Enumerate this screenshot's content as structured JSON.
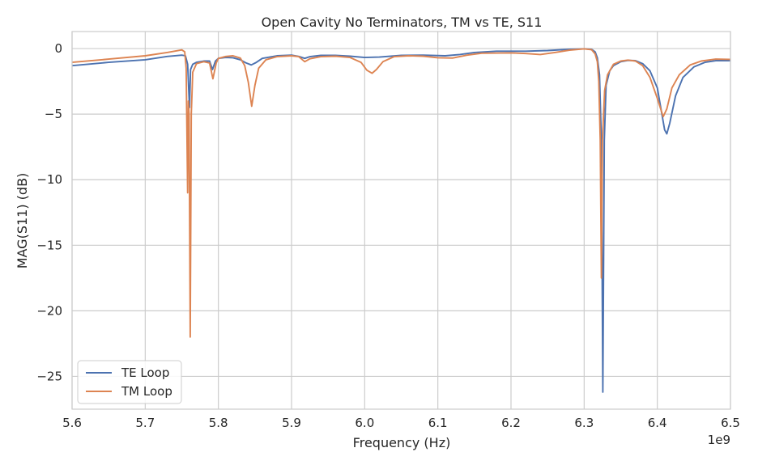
{
  "chart_data": {
    "type": "line",
    "title": "Open Cavity No Terminators, TM vs TE, S11",
    "xlabel": "Frequency (Hz)",
    "ylabel": "MAG(S11) (dB)",
    "x_offset_label": "1e9",
    "xlim": [
      5.6,
      6.5
    ],
    "ylim": [
      -27.5,
      1.3
    ],
    "grid": true,
    "legend_position": "lower-left",
    "x_ticks": [
      5.6,
      5.7,
      5.8,
      5.9,
      6.0,
      6.1,
      6.2,
      6.3,
      6.4,
      6.5
    ],
    "x_tick_labels": [
      "5.6",
      "5.7",
      "5.8",
      "5.9",
      "6.0",
      "6.1",
      "6.2",
      "6.3",
      "6.4",
      "6.5"
    ],
    "y_ticks": [
      0,
      -5,
      -10,
      -15,
      -20,
      -25
    ],
    "y_tick_labels": [
      "0",
      "−5",
      "−10",
      "−15",
      "−20",
      "−25"
    ],
    "series": [
      {
        "name": "TE Loop",
        "color": "#4c72b0",
        "points": [
          [
            5.6,
            -1.3
          ],
          [
            5.65,
            -1.05
          ],
          [
            5.7,
            -0.85
          ],
          [
            5.73,
            -0.6
          ],
          [
            5.75,
            -0.5
          ],
          [
            5.755,
            -0.55
          ],
          [
            5.758,
            -1.2
          ],
          [
            5.7605,
            -4.5
          ],
          [
            5.762,
            -1.6
          ],
          [
            5.765,
            -1.2
          ],
          [
            5.77,
            -1.05
          ],
          [
            5.78,
            -0.95
          ],
          [
            5.788,
            -0.95
          ],
          [
            5.792,
            -1.6
          ],
          [
            5.796,
            -0.95
          ],
          [
            5.8,
            -0.75
          ],
          [
            5.81,
            -0.68
          ],
          [
            5.82,
            -0.7
          ],
          [
            5.83,
            -0.85
          ],
          [
            5.838,
            -1.1
          ],
          [
            5.845,
            -1.25
          ],
          [
            5.852,
            -1.05
          ],
          [
            5.86,
            -0.75
          ],
          [
            5.88,
            -0.55
          ],
          [
            5.9,
            -0.5
          ],
          [
            5.91,
            -0.6
          ],
          [
            5.918,
            -0.75
          ],
          [
            5.925,
            -0.62
          ],
          [
            5.94,
            -0.52
          ],
          [
            5.96,
            -0.52
          ],
          [
            5.98,
            -0.58
          ],
          [
            6.0,
            -0.68
          ],
          [
            6.02,
            -0.65
          ],
          [
            6.05,
            -0.52
          ],
          [
            6.08,
            -0.5
          ],
          [
            6.11,
            -0.55
          ],
          [
            6.13,
            -0.45
          ],
          [
            6.15,
            -0.3
          ],
          [
            6.18,
            -0.2
          ],
          [
            6.22,
            -0.2
          ],
          [
            6.25,
            -0.15
          ],
          [
            6.28,
            -0.05
          ],
          [
            6.3,
            -0.02
          ],
          [
            6.31,
            -0.05
          ],
          [
            6.315,
            -0.25
          ],
          [
            6.318,
            -0.7
          ],
          [
            6.321,
            -2.0
          ],
          [
            6.3235,
            -7.0
          ],
          [
            6.3255,
            -26.2
          ],
          [
            6.3275,
            -7.0
          ],
          [
            6.33,
            -2.8
          ],
          [
            6.335,
            -1.7
          ],
          [
            6.34,
            -1.3
          ],
          [
            6.35,
            -1.0
          ],
          [
            6.36,
            -0.9
          ],
          [
            6.37,
            -0.92
          ],
          [
            6.38,
            -1.15
          ],
          [
            6.39,
            -1.7
          ],
          [
            6.4,
            -3.0
          ],
          [
            6.405,
            -4.6
          ],
          [
            6.41,
            -6.2
          ],
          [
            6.413,
            -6.5
          ],
          [
            6.417,
            -5.7
          ],
          [
            6.425,
            -3.6
          ],
          [
            6.435,
            -2.2
          ],
          [
            6.45,
            -1.4
          ],
          [
            6.465,
            -1.05
          ],
          [
            6.48,
            -0.92
          ],
          [
            6.5,
            -0.92
          ]
        ]
      },
      {
        "name": "TM Loop",
        "color": "#dd8452",
        "points": [
          [
            5.6,
            -1.05
          ],
          [
            5.65,
            -0.8
          ],
          [
            5.7,
            -0.55
          ],
          [
            5.73,
            -0.3
          ],
          [
            5.75,
            -0.1
          ],
          [
            5.754,
            -0.25
          ],
          [
            5.756,
            -1.5
          ],
          [
            5.758,
            -11.0
          ],
          [
            5.759,
            -4.0
          ],
          [
            5.76,
            -5.0
          ],
          [
            5.7615,
            -22.0
          ],
          [
            5.763,
            -5.0
          ],
          [
            5.765,
            -1.8
          ],
          [
            5.77,
            -1.15
          ],
          [
            5.78,
            -1.0
          ],
          [
            5.788,
            -1.1
          ],
          [
            5.7925,
            -2.3
          ],
          [
            5.797,
            -1.1
          ],
          [
            5.8,
            -0.75
          ],
          [
            5.81,
            -0.6
          ],
          [
            5.82,
            -0.55
          ],
          [
            5.83,
            -0.72
          ],
          [
            5.836,
            -1.3
          ],
          [
            5.841,
            -2.6
          ],
          [
            5.8455,
            -4.4
          ],
          [
            5.85,
            -2.8
          ],
          [
            5.855,
            -1.5
          ],
          [
            5.865,
            -0.85
          ],
          [
            5.88,
            -0.62
          ],
          [
            5.9,
            -0.55
          ],
          [
            5.91,
            -0.62
          ],
          [
            5.918,
            -1.0
          ],
          [
            5.925,
            -0.78
          ],
          [
            5.94,
            -0.62
          ],
          [
            5.96,
            -0.58
          ],
          [
            5.98,
            -0.68
          ],
          [
            5.995,
            -1.05
          ],
          [
            6.003,
            -1.65
          ],
          [
            6.01,
            -1.88
          ],
          [
            6.016,
            -1.6
          ],
          [
            6.025,
            -1.0
          ],
          [
            6.04,
            -0.62
          ],
          [
            6.06,
            -0.55
          ],
          [
            6.08,
            -0.58
          ],
          [
            6.1,
            -0.7
          ],
          [
            6.12,
            -0.72
          ],
          [
            6.14,
            -0.5
          ],
          [
            6.16,
            -0.35
          ],
          [
            6.2,
            -0.33
          ],
          [
            6.22,
            -0.38
          ],
          [
            6.24,
            -0.45
          ],
          [
            6.26,
            -0.3
          ],
          [
            6.28,
            -0.12
          ],
          [
            6.3,
            -0.02
          ],
          [
            6.31,
            -0.08
          ],
          [
            6.315,
            -0.4
          ],
          [
            6.318,
            -1.0
          ],
          [
            6.32,
            -2.5
          ],
          [
            6.322,
            -7.0
          ],
          [
            6.3235,
            -17.5
          ],
          [
            6.325,
            -7.0
          ],
          [
            6.328,
            -3.2
          ],
          [
            6.332,
            -2.0
          ],
          [
            6.34,
            -1.2
          ],
          [
            6.35,
            -0.95
          ],
          [
            6.36,
            -0.88
          ],
          [
            6.37,
            -0.95
          ],
          [
            6.38,
            -1.3
          ],
          [
            6.39,
            -2.2
          ],
          [
            6.4,
            -3.8
          ],
          [
            6.408,
            -5.2
          ],
          [
            6.413,
            -4.6
          ],
          [
            6.42,
            -3.0
          ],
          [
            6.43,
            -2.0
          ],
          [
            6.445,
            -1.25
          ],
          [
            6.46,
            -0.95
          ],
          [
            6.48,
            -0.8
          ],
          [
            6.5,
            -0.82
          ]
        ]
      }
    ]
  }
}
